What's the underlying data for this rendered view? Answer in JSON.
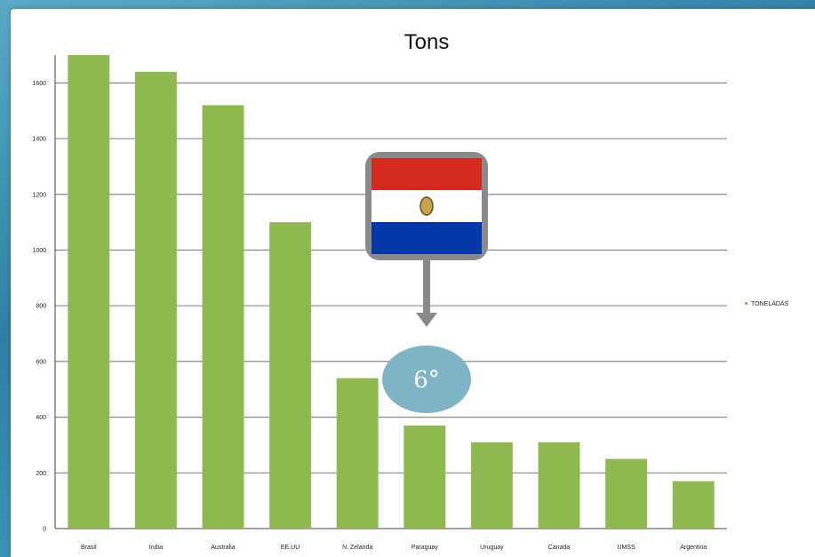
{
  "chart_data": {
    "type": "bar",
    "title": "Tons",
    "categories": [
      "Brasil",
      "India",
      "Australia",
      "EE.UU",
      "N. Zelanda",
      "Paraguay",
      "Uruguay",
      "Canada",
      "UMSS",
      "Argentina"
    ],
    "series": [
      {
        "name": "TONELADAS",
        "values": [
          1700,
          1640,
          1520,
          1100,
          540,
          370,
          310,
          310,
          250,
          170
        ]
      }
    ],
    "y_ticks": [
      0,
      200,
      400,
      600,
      800,
      1000,
      1200,
      1400,
      1600
    ],
    "ylim": [
      0,
      1700
    ],
    "grid": true,
    "legend_position": "right",
    "bar_color": "#8db94f"
  },
  "annotation": {
    "rank_label": "6°",
    "target_category": "Paraguay",
    "flag": "paraguay-flag-icon",
    "flag_colors": {
      "red": "#d52b1e",
      "white": "#ffffff",
      "blue": "#0038a8"
    },
    "callout_color": "#7fb3c6",
    "frame_color": "#8a8a8a"
  }
}
